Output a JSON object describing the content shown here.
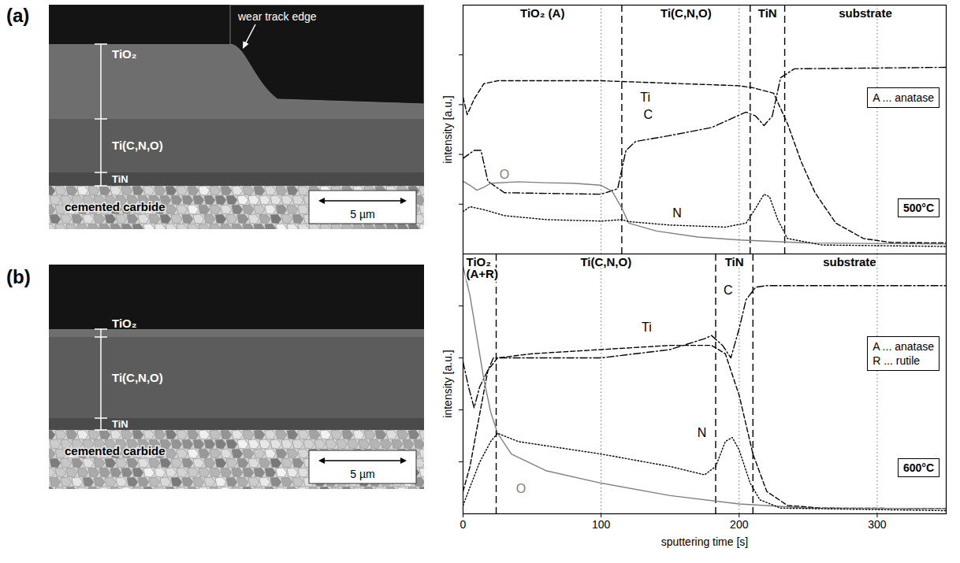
{
  "panel_labels": [
    "(a)",
    "(b)"
  ],
  "micrographs": [
    {
      "layers": [
        "TiO₂",
        "Ti(C,N,O)",
        "TiN"
      ],
      "substrate": "cemented carbide",
      "annotation": "wear track edge",
      "scale_bar": "5 µm"
    },
    {
      "layers": [
        "TiO₂",
        "Ti(C,N,O)",
        "TiN"
      ],
      "substrate": "cemented carbide",
      "scale_bar": "5 µm"
    }
  ],
  "chart_data": [
    {
      "type": "line",
      "y_label": "intensity [a.u.]",
      "xlim": [
        0,
        350
      ],
      "xticks": [
        0,
        100,
        200,
        300
      ],
      "ylim": [
        0,
        5
      ],
      "yticks": [
        1,
        2,
        3,
        4
      ],
      "tick_labels": false,
      "grid": true,
      "regions": [
        {
          "label": "TiO₂ (A)",
          "from": 0,
          "to": 115
        },
        {
          "label": "Ti(C,N,O)",
          "from": 115,
          "to": 208
        },
        {
          "label": "TiN",
          "from": 208,
          "to": 233
        },
        {
          "label": "substrate",
          "from": 233,
          "to": 350
        }
      ],
      "notes": [
        "A ... anatase"
      ],
      "temperature": "500°C",
      "series": [
        {
          "name": "Ti",
          "color": "#000000",
          "line_style": "dashed",
          "x": [
            0,
            3,
            8,
            15,
            25,
            100,
            150,
            200,
            210,
            225,
            235,
            245,
            255,
            270,
            290,
            310,
            350
          ],
          "values": [
            3.15,
            2.8,
            3.11,
            3.42,
            3.48,
            3.48,
            3.43,
            3.38,
            3.34,
            3.23,
            2.62,
            1.85,
            1.23,
            0.62,
            0.31,
            0.23,
            0.22
          ]
        },
        {
          "name": "C",
          "color": "#000000",
          "line_style": "dashdot",
          "x": [
            0,
            8,
            13,
            18,
            30,
            100,
            112,
            118,
            125,
            150,
            180,
            205,
            212,
            218,
            224,
            230,
            240,
            350
          ],
          "values": [
            1.92,
            2.08,
            2.08,
            1.46,
            1.23,
            1.2,
            1.31,
            2.08,
            2.26,
            2.38,
            2.54,
            2.85,
            2.77,
            2.58,
            2.77,
            3.54,
            3.72,
            3.75
          ]
        },
        {
          "name": "O",
          "color": "#808080",
          "line_style": "solid",
          "x": [
            0,
            5,
            10,
            15,
            20,
            40,
            60,
            80,
            100,
            108,
            115,
            120,
            140,
            170,
            200,
            250,
            350
          ],
          "values": [
            1.46,
            1.38,
            1.28,
            1.34,
            1.42,
            1.45,
            1.43,
            1.42,
            1.38,
            1.26,
            0.92,
            0.62,
            0.46,
            0.34,
            0.28,
            0.22,
            0.2
          ]
        },
        {
          "name": "N",
          "color": "#000000",
          "line_style": "dotted",
          "x": [
            0,
            5,
            15,
            30,
            60,
            100,
            115,
            120,
            150,
            190,
            205,
            212,
            218,
            222,
            228,
            235,
            260,
            350
          ],
          "values": [
            0.85,
            0.95,
            0.89,
            0.77,
            0.69,
            0.66,
            0.69,
            0.65,
            0.58,
            0.54,
            0.62,
            0.92,
            1.2,
            1.15,
            0.69,
            0.31,
            0.18,
            0.15
          ]
        }
      ],
      "annotations": [
        {
          "text": "Ti",
          "x": 132,
          "y": 3.15
        },
        {
          "text": "C",
          "x": 134,
          "y": 2.8
        },
        {
          "text": "O",
          "x": 30,
          "y": 1.6
        },
        {
          "text": "N",
          "x": 155,
          "y": 0.82
        }
      ]
    },
    {
      "type": "line",
      "x_label": "sputtering time [s]",
      "y_label": "intensity [a.u.]",
      "xlim": [
        0,
        350
      ],
      "xticks": [
        0,
        100,
        200,
        300
      ],
      "ylim": [
        0,
        5
      ],
      "yticks": [
        1,
        2,
        3,
        4
      ],
      "tick_labels": "x",
      "grid": true,
      "regions": [
        {
          "label": "TiO₂\n(A+R)",
          "from": 0,
          "to": 24
        },
        {
          "label": "Ti(C,N,O)",
          "from": 24,
          "to": 183
        },
        {
          "label": "TiN",
          "from": 183,
          "to": 210
        },
        {
          "label": "substrate",
          "from": 210,
          "to": 350
        }
      ],
      "notes": [
        "A ... anatase",
        "R ... rutile"
      ],
      "temperature": "600°C",
      "series": [
        {
          "name": "Ti",
          "color": "#000000",
          "line_style": "dashed",
          "x": [
            0,
            5,
            10,
            18,
            25,
            50,
            100,
            150,
            180,
            190,
            200,
            210,
            220,
            235,
            260,
            350
          ],
          "values": [
            0.43,
            0.91,
            1.63,
            2.76,
            3.0,
            3.08,
            3.16,
            3.24,
            3.24,
            3.08,
            2.28,
            1.15,
            0.43,
            0.16,
            0.11,
            0.1
          ]
        },
        {
          "name": "C",
          "color": "#000000",
          "line_style": "dashdot",
          "x": [
            0,
            4,
            8,
            12,
            18,
            22,
            30,
            100,
            150,
            175,
            180,
            188,
            194,
            200,
            205,
            212,
            220,
            350
          ],
          "values": [
            2.92,
            2.44,
            2.04,
            2.44,
            2.76,
            3.0,
            3.0,
            3.0,
            3.16,
            3.37,
            3.43,
            3.24,
            3.0,
            3.56,
            4.12,
            4.36,
            4.39,
            4.39
          ]
        },
        {
          "name": "O",
          "color": "#808080",
          "line_style": "solid",
          "x": [
            0,
            5,
            10,
            15,
            20,
            25,
            35,
            60,
            100,
            150,
            200,
            250,
            350
          ],
          "values": [
            4.76,
            4.2,
            3.4,
            2.6,
            1.96,
            1.55,
            1.15,
            0.83,
            0.59,
            0.35,
            0.19,
            0.11,
            0.1
          ]
        },
        {
          "name": "N",
          "color": "#000000",
          "line_style": "dotted",
          "x": [
            0,
            5,
            12,
            20,
            25,
            40,
            100,
            150,
            175,
            183,
            190,
            195,
            200,
            208,
            215,
            230,
            350
          ],
          "values": [
            0.16,
            0.51,
            0.99,
            1.39,
            1.55,
            1.39,
            1.15,
            0.91,
            0.75,
            0.91,
            1.39,
            1.47,
            1.23,
            0.59,
            0.27,
            0.11,
            0.06
          ]
        }
      ],
      "annotations": [
        {
          "text": "Ti",
          "x": 133,
          "y": 3.59
        },
        {
          "text": "C",
          "x": 192,
          "y": 4.3
        },
        {
          "text": "N",
          "x": 173,
          "y": 1.55
        },
        {
          "text": "O",
          "x": 42,
          "y": 0.48
        }
      ]
    }
  ]
}
